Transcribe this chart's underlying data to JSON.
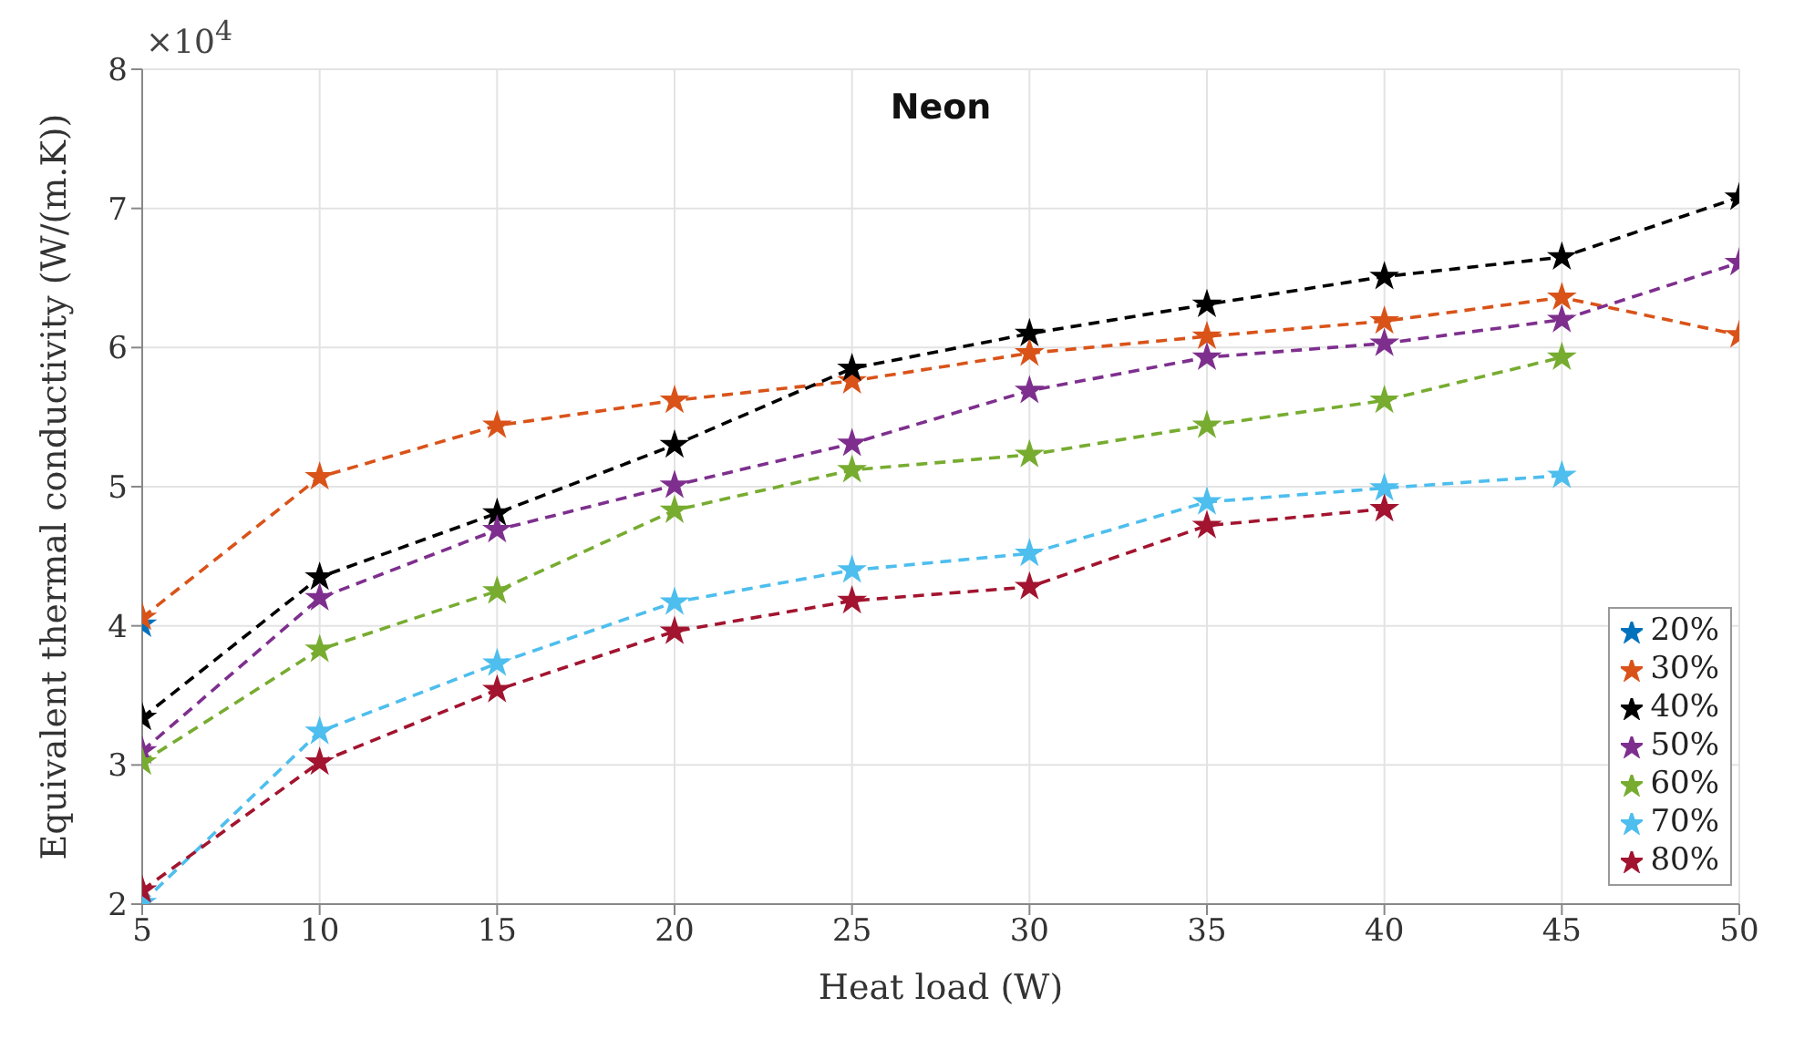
{
  "chart_data": {
    "type": "line",
    "title": "Neon",
    "xlabel": "Heat load (W)",
    "ylabel": "Equivalent thermal conductivity (W/(m.K))",
    "annotations": [
      "×10$^{4}$"
    ],
    "x": [
      5,
      10,
      15,
      20,
      25,
      30,
      35,
      40,
      45,
      50
    ],
    "series": [
      {
        "name": "20%",
        "color": "#0072bd",
        "values": [
          4.01,
          null,
          null,
          null,
          null,
          null,
          null,
          null,
          null,
          null
        ]
      },
      {
        "name": "30%",
        "color": "#d95319",
        "values": [
          4.06,
          5.07,
          5.44,
          5.62,
          5.76,
          5.96,
          6.08,
          6.19,
          6.36,
          6.09
        ]
      },
      {
        "name": "40%",
        "color": "#000000",
        "values": [
          3.34,
          4.35,
          4.81,
          5.3,
          5.85,
          6.1,
          6.31,
          6.51,
          6.65,
          7.08
        ]
      },
      {
        "name": "50%",
        "color": "#7e2f8e",
        "values": [
          3.1,
          4.2,
          4.69,
          5.01,
          5.31,
          5.69,
          5.93,
          6.03,
          6.2,
          6.61
        ]
      },
      {
        "name": "60%",
        "color": "#77ac30",
        "values": [
          3.02,
          3.83,
          4.25,
          4.83,
          5.12,
          5.23,
          5.44,
          5.62,
          5.93,
          null
        ]
      },
      {
        "name": "70%",
        "color": "#4dbeee",
        "values": [
          2.01,
          3.24,
          3.73,
          4.17,
          4.4,
          4.52,
          4.89,
          4.99,
          5.08,
          null
        ]
      },
      {
        "name": "80%",
        "color": "#a2142f",
        "values": [
          2.1,
          3.02,
          3.54,
          3.96,
          4.18,
          4.28,
          4.72,
          4.84,
          null,
          null
        ]
      }
    ],
    "xlim": [
      5,
      50
    ],
    "xticks": [
      5,
      10,
      15,
      20,
      25,
      30,
      35,
      40,
      45,
      50
    ],
    "ylim": [
      2,
      8
    ],
    "yticks": [
      2,
      3,
      4,
      5,
      6,
      7,
      8
    ],
    "grid": true,
    "legend": "bottom right",
    "marker": "star",
    "line_style": "dashed"
  }
}
